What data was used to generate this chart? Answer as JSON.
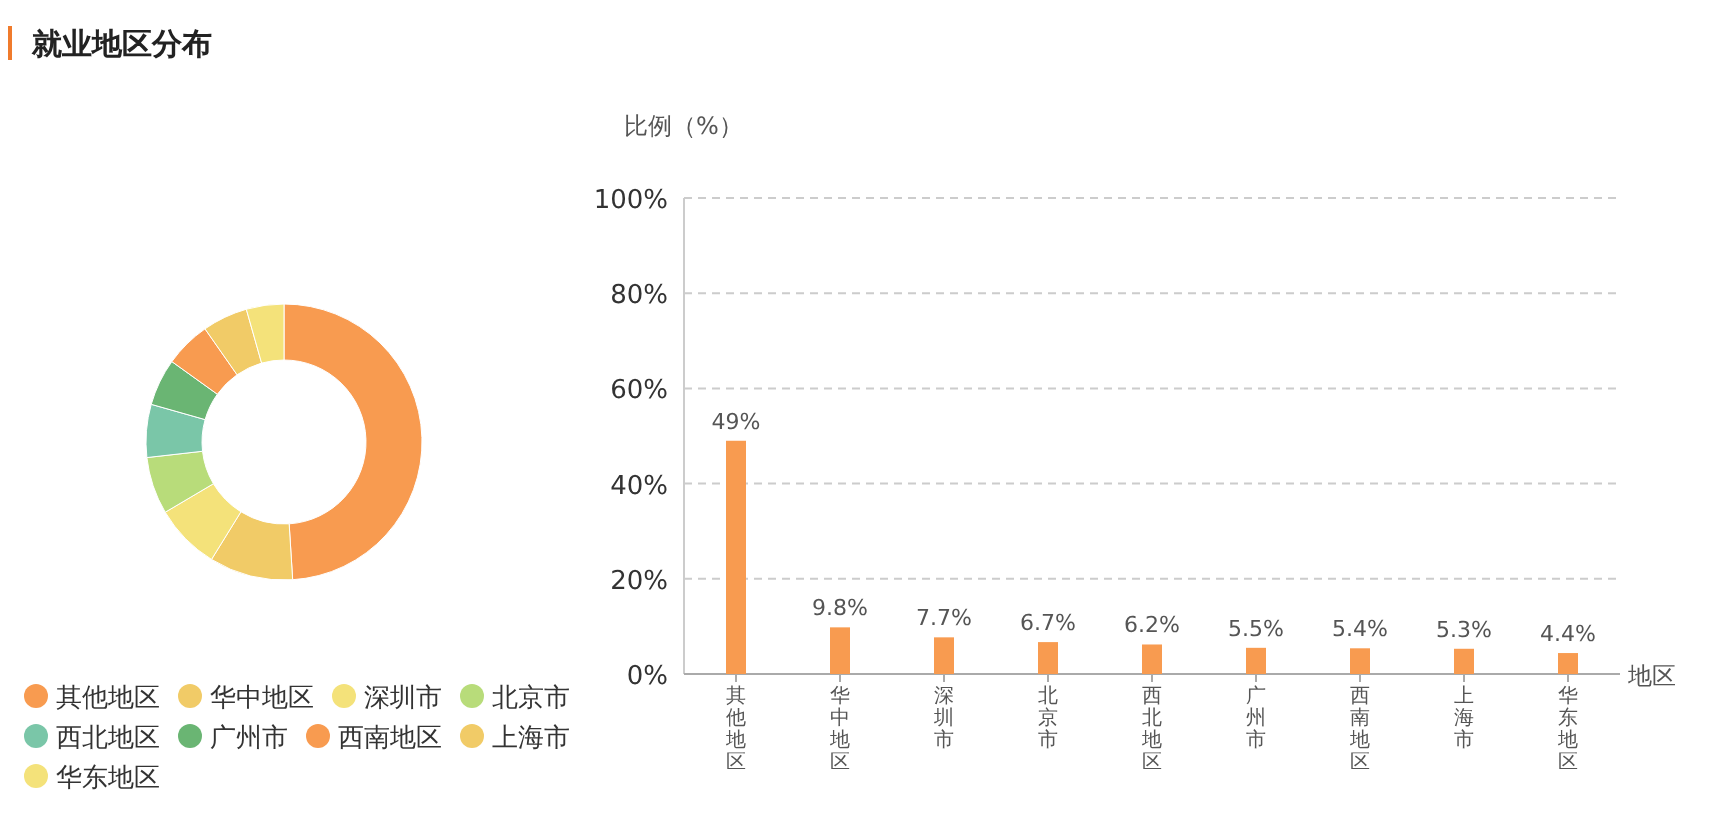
{
  "chart_data": [
    {
      "type": "donut",
      "title": "就业地区分布",
      "legend": "bottom",
      "categories": [
        "其他地区",
        "华中地区",
        "深圳市",
        "北京市",
        "西北地区",
        "广州市",
        "西南地区",
        "上海市",
        "华东地区"
      ],
      "values": [
        49,
        9.8,
        7.7,
        6.7,
        6.2,
        5.5,
        5.4,
        5.3,
        4.4
      ],
      "colors": [
        "#f89b50",
        "#f1cb67",
        "#f4e27a",
        "#b8dc7a",
        "#7ac6a8",
        "#6ab573",
        "#f89b50",
        "#f1cb67",
        "#f4e27a"
      ]
    },
    {
      "type": "bar",
      "ylabel": "比例（%）",
      "xlabel": "地区",
      "grid": "y",
      "categories": [
        "其他地区",
        "华中地区",
        "深圳市",
        "北京市",
        "西北地区",
        "广州市",
        "西南地区",
        "上海市",
        "华东地区"
      ],
      "values": [
        49,
        9.8,
        7.7,
        6.7,
        6.2,
        5.5,
        5.4,
        5.3,
        4.4
      ],
      "value_labels": [
        "49%",
        "9.8%",
        "7.7%",
        "6.7%",
        "6.2%",
        "5.5%",
        "5.4%",
        "5.3%",
        "4.4%"
      ],
      "color": "#f89b50",
      "ylim": [
        0,
        100
      ],
      "yticks": [
        {
          "value": 0,
          "label": "0%"
        },
        {
          "value": 20,
          "label": "20%"
        },
        {
          "value": 40,
          "label": "40%"
        },
        {
          "value": 60,
          "label": "60%"
        },
        {
          "value": 80,
          "label": "80%"
        },
        {
          "value": 100,
          "label": "100%"
        }
      ]
    }
  ]
}
